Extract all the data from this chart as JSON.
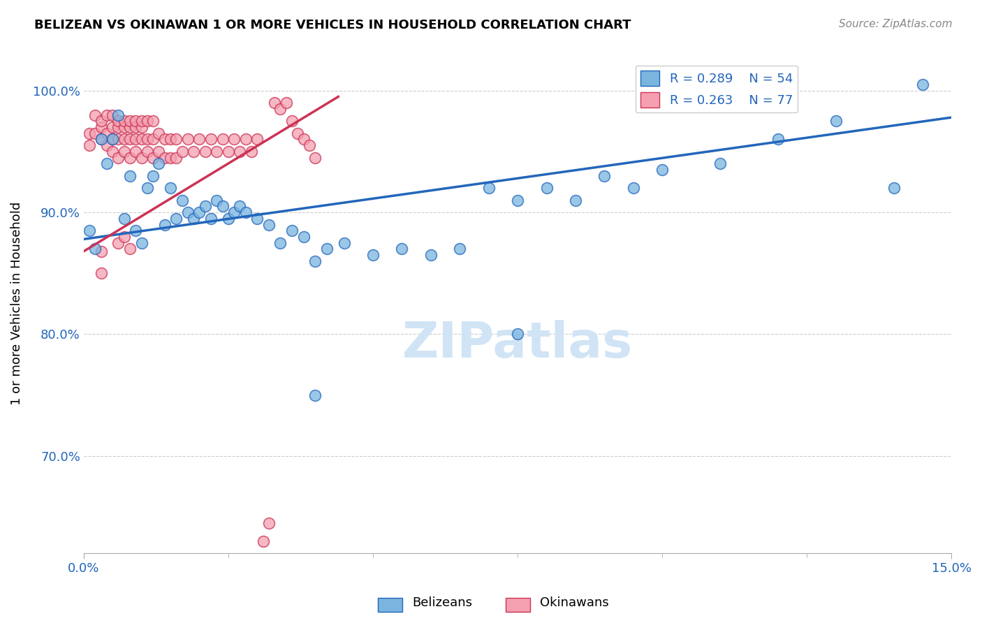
{
  "title": "BELIZEAN VS OKINAWAN 1 OR MORE VEHICLES IN HOUSEHOLD CORRELATION CHART",
  "source": "Source: ZipAtlas.com",
  "ylabel": "1 or more Vehicles in Household",
  "xmin": 0.0,
  "xmax": 0.15,
  "ymin": 0.62,
  "ymax": 1.03,
  "ytick_values": [
    0.7,
    0.8,
    0.9,
    1.0
  ],
  "ytick_labels": [
    "70.0%",
    "80.0%",
    "90.0%",
    "100.0%"
  ],
  "xtick_left_label": "0.0%",
  "xtick_right_label": "15.0%",
  "legend_blue_r": "R = 0.289",
  "legend_blue_n": "N = 54",
  "legend_pink_r": "R = 0.263",
  "legend_pink_n": "N = 77",
  "blue_scatter_color": "#7ab5e0",
  "pink_scatter_color": "#f4a0b0",
  "line_blue_color": "#2266bb",
  "line_pink_color": "#cc3355",
  "watermark_color": "#d0e4f5",
  "blue_line_x": [
    0.0,
    0.15
  ],
  "blue_line_y": [
    0.878,
    0.978
  ],
  "pink_line_x": [
    0.0,
    0.044
  ],
  "pink_line_y": [
    0.868,
    0.995
  ],
  "belizean_x": [
    0.001,
    0.002,
    0.003,
    0.004,
    0.005,
    0.006,
    0.007,
    0.008,
    0.009,
    0.01,
    0.011,
    0.012,
    0.013,
    0.014,
    0.015,
    0.016,
    0.017,
    0.018,
    0.019,
    0.02,
    0.021,
    0.022,
    0.023,
    0.024,
    0.025,
    0.026,
    0.027,
    0.028,
    0.03,
    0.032,
    0.034,
    0.036,
    0.038,
    0.04,
    0.042,
    0.045,
    0.05,
    0.055,
    0.06,
    0.065,
    0.07,
    0.075,
    0.08,
    0.085,
    0.09,
    0.095,
    0.1,
    0.11,
    0.12,
    0.13,
    0.14,
    0.145,
    0.075,
    0.04
  ],
  "belizean_y": [
    0.885,
    0.87,
    0.96,
    0.94,
    0.96,
    0.98,
    0.895,
    0.93,
    0.885,
    0.875,
    0.92,
    0.93,
    0.94,
    0.89,
    0.92,
    0.895,
    0.91,
    0.9,
    0.895,
    0.9,
    0.905,
    0.895,
    0.91,
    0.905,
    0.895,
    0.9,
    0.905,
    0.9,
    0.895,
    0.89,
    0.875,
    0.885,
    0.88,
    0.86,
    0.87,
    0.875,
    0.865,
    0.87,
    0.865,
    0.87,
    0.92,
    0.91,
    0.92,
    0.91,
    0.93,
    0.92,
    0.935,
    0.94,
    0.96,
    0.975,
    0.92,
    1.005,
    0.8,
    0.75
  ],
  "okinawan_x": [
    0.001,
    0.001,
    0.002,
    0.002,
    0.003,
    0.003,
    0.003,
    0.004,
    0.004,
    0.004,
    0.005,
    0.005,
    0.005,
    0.005,
    0.006,
    0.006,
    0.006,
    0.006,
    0.007,
    0.007,
    0.007,
    0.007,
    0.008,
    0.008,
    0.008,
    0.008,
    0.009,
    0.009,
    0.009,
    0.009,
    0.01,
    0.01,
    0.01,
    0.01,
    0.011,
    0.011,
    0.011,
    0.012,
    0.012,
    0.012,
    0.013,
    0.013,
    0.014,
    0.014,
    0.015,
    0.015,
    0.016,
    0.016,
    0.017,
    0.018,
    0.019,
    0.02,
    0.021,
    0.022,
    0.023,
    0.024,
    0.025,
    0.026,
    0.027,
    0.028,
    0.029,
    0.03,
    0.031,
    0.032,
    0.033,
    0.034,
    0.035,
    0.036,
    0.037,
    0.038,
    0.039,
    0.04,
    0.003,
    0.006,
    0.007,
    0.008,
    0.003
  ],
  "okinawan_y": [
    0.955,
    0.965,
    0.965,
    0.98,
    0.96,
    0.97,
    0.975,
    0.955,
    0.965,
    0.98,
    0.95,
    0.96,
    0.97,
    0.98,
    0.945,
    0.96,
    0.97,
    0.975,
    0.95,
    0.96,
    0.97,
    0.975,
    0.945,
    0.96,
    0.97,
    0.975,
    0.95,
    0.96,
    0.97,
    0.975,
    0.945,
    0.96,
    0.97,
    0.975,
    0.95,
    0.96,
    0.975,
    0.945,
    0.96,
    0.975,
    0.95,
    0.965,
    0.945,
    0.96,
    0.945,
    0.96,
    0.945,
    0.96,
    0.95,
    0.96,
    0.95,
    0.96,
    0.95,
    0.96,
    0.95,
    0.96,
    0.95,
    0.96,
    0.95,
    0.96,
    0.95,
    0.96,
    0.63,
    0.645,
    0.99,
    0.985,
    0.99,
    0.975,
    0.965,
    0.96,
    0.955,
    0.945,
    0.868,
    0.875,
    0.88,
    0.87,
    0.85
  ]
}
